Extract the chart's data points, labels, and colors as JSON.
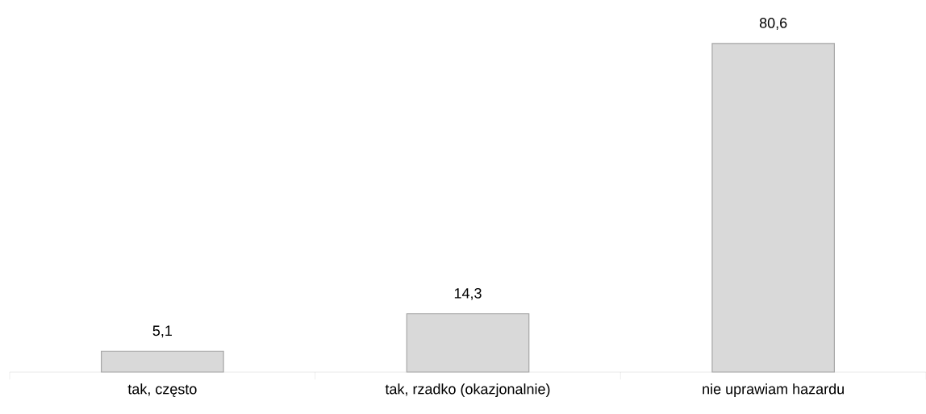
{
  "chart_data": {
    "type": "bar",
    "categories": [
      "tak, często",
      "tak, rzadko (okazjonalnie)",
      "nie uprawiam hazardu"
    ],
    "values": [
      5.1,
      14.3,
      80.6
    ],
    "value_labels": [
      "5,1",
      "14,3",
      "80,6"
    ],
    "color": "#d9d9d9"
  }
}
